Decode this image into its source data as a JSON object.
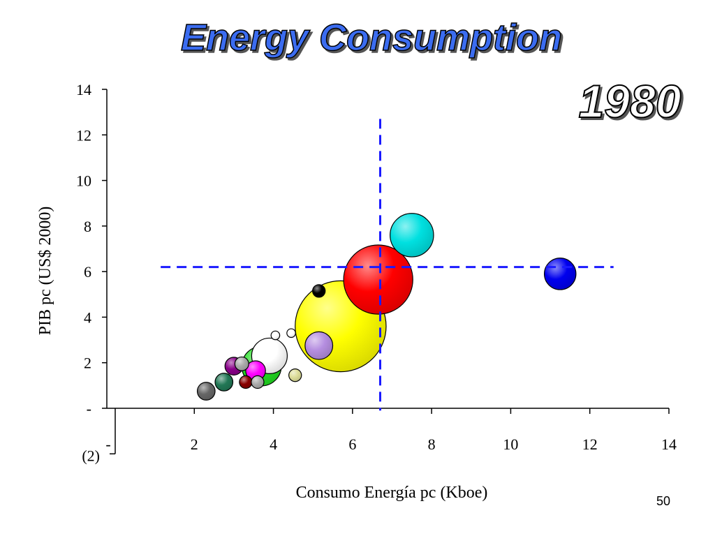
{
  "slide": {
    "title": "Energy Consumption",
    "year": "1980",
    "page_number": "50"
  },
  "chart_data": {
    "type": "scatter",
    "title": "Energy Consumption",
    "xlabel": "Consumo Energía pc (Kboe)",
    "ylabel": "PIB pc (US$ 2000)",
    "xlim": [
      0,
      14
    ],
    "ylim": [
      -2,
      14
    ],
    "x_ticks": [
      "2",
      "4",
      "6",
      "8",
      "10",
      "12",
      "14"
    ],
    "x_tick_values": [
      2,
      4,
      6,
      8,
      10,
      12,
      14
    ],
    "y_ticks": [
      "14",
      "12",
      "10",
      "8",
      "6",
      "4",
      "2",
      "-",
      "(2)"
    ],
    "y_tick_values": [
      14,
      12,
      10,
      8,
      6,
      4,
      2,
      0,
      -2
    ],
    "x_origin_tick_label": "-",
    "reference_lines": {
      "x": 6.7,
      "y": 6.2,
      "color": "#1a1aff"
    },
    "bubbles": [
      {
        "x": 5.7,
        "y": 3.6,
        "size": 2.3,
        "color": "#ffff00"
      },
      {
        "x": 6.65,
        "y": 5.65,
        "size": 1.75,
        "color": "#ff0000"
      },
      {
        "x": 7.5,
        "y": 7.6,
        "size": 1.1,
        "color": "#00e0e0"
      },
      {
        "x": 11.25,
        "y": 5.9,
        "size": 0.8,
        "color": "#0000ee"
      },
      {
        "x": 3.7,
        "y": 1.85,
        "size": 1.0,
        "color": "#22dd22"
      },
      {
        "x": 3.9,
        "y": 2.3,
        "size": 0.9,
        "color": "#ffffff"
      },
      {
        "x": 5.15,
        "y": 2.75,
        "size": 0.7,
        "color": "#b58ee0"
      },
      {
        "x": 3.55,
        "y": 1.65,
        "size": 0.5,
        "color": "#ff00ff"
      },
      {
        "x": 3.0,
        "y": 1.85,
        "size": 0.45,
        "color": "#880088"
      },
      {
        "x": 3.2,
        "y": 1.95,
        "size": 0.35,
        "color": "#aaaaaa"
      },
      {
        "x": 2.75,
        "y": 1.15,
        "size": 0.45,
        "color": "#227755"
      },
      {
        "x": 2.3,
        "y": 0.75,
        "size": 0.45,
        "color": "#666666"
      },
      {
        "x": 3.3,
        "y": 1.15,
        "size": 0.32,
        "color": "#880000"
      },
      {
        "x": 3.6,
        "y": 1.15,
        "size": 0.32,
        "color": "#aaaaaa"
      },
      {
        "x": 4.55,
        "y": 1.45,
        "size": 0.32,
        "color": "#dddd99"
      },
      {
        "x": 5.15,
        "y": 5.15,
        "size": 0.32,
        "color": "#000000"
      },
      {
        "x": 4.05,
        "y": 3.2,
        "size": 0.22,
        "color": "#ffffff"
      },
      {
        "x": 4.45,
        "y": 3.3,
        "size": 0.22,
        "color": "#ffffff"
      }
    ]
  }
}
